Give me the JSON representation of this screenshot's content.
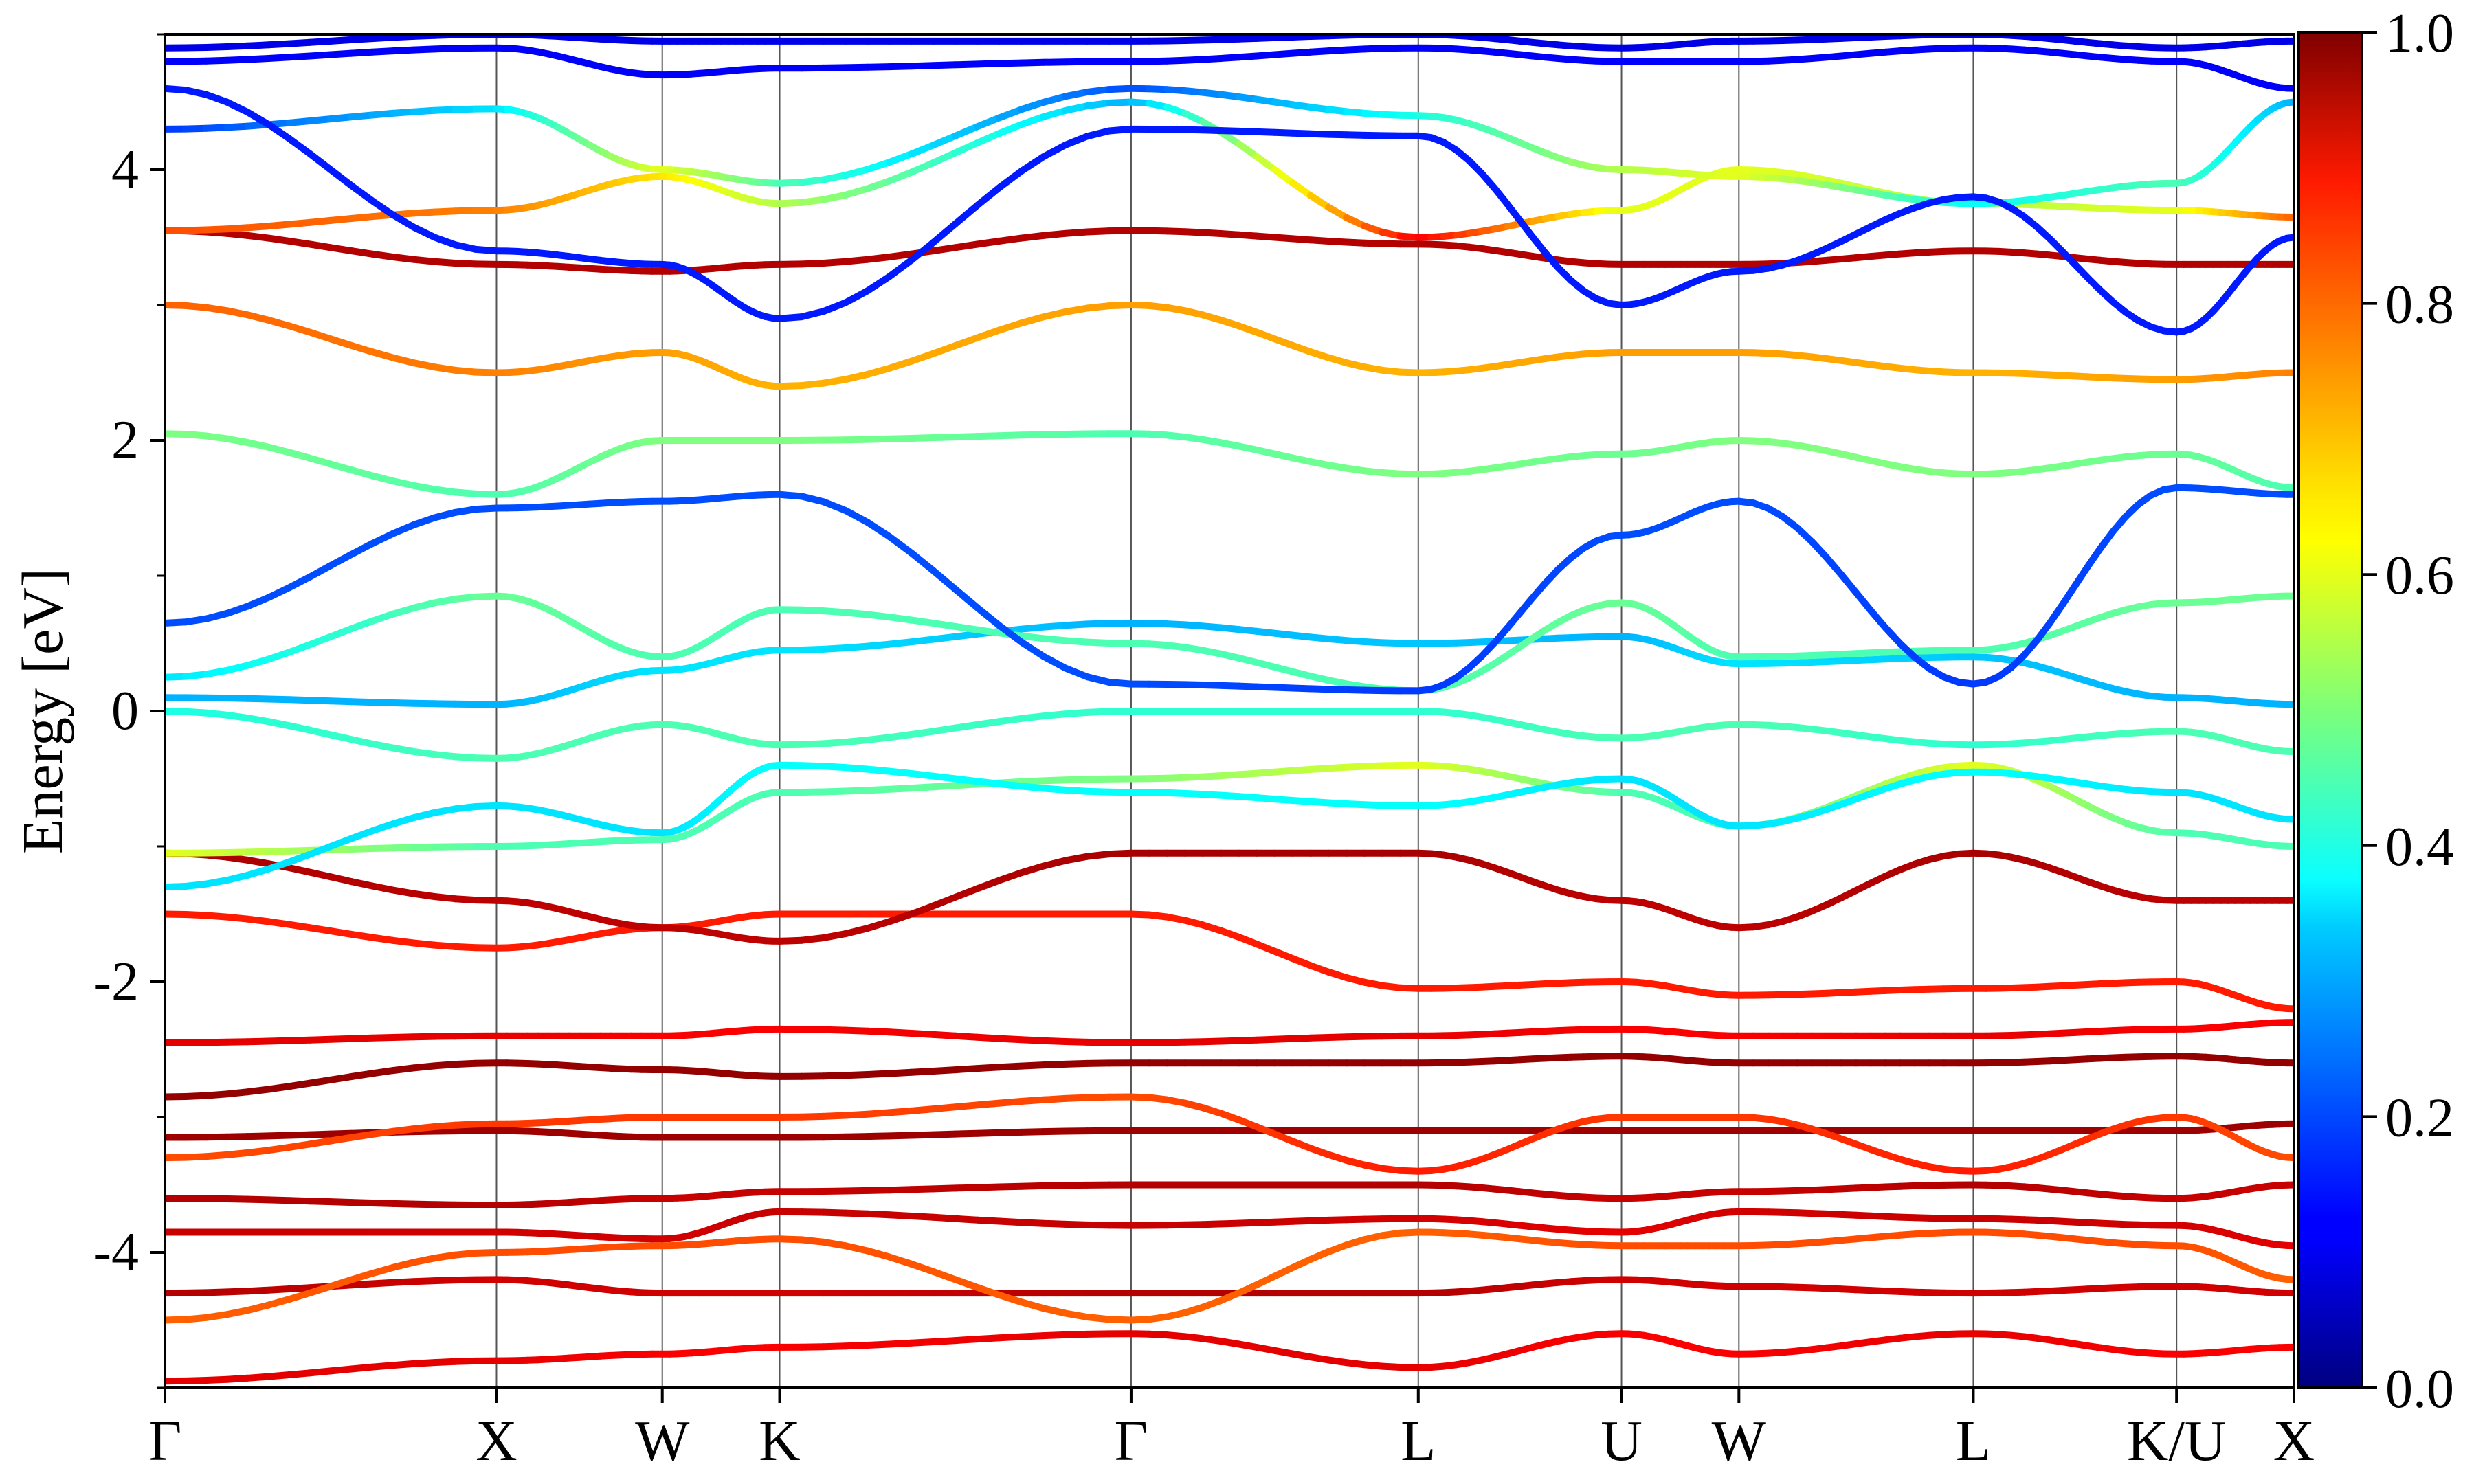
{
  "chart_data": {
    "type": "line",
    "title": "",
    "xlabel": "",
    "ylabel": "Energy [eV]",
    "ylim": [
      -5,
      5
    ],
    "y_ticks": [
      -4,
      -2,
      0,
      2,
      4
    ],
    "y_tick_labels": [
      "-4",
      "-2",
      "0",
      "2",
      "4"
    ],
    "high_symmetry_points": [
      {
        "label": "Γ",
        "pos": 0.0
      },
      {
        "label": "X",
        "pos": 1.0
      },
      {
        "label": "W",
        "pos": 1.5
      },
      {
        "label": "K",
        "pos": 1.854
      },
      {
        "label": "Γ",
        "pos": 2.914
      },
      {
        "label": "L",
        "pos": 3.78
      },
      {
        "label": "U",
        "pos": 4.393
      },
      {
        "label": "W",
        "pos": 4.747
      },
      {
        "label": "L",
        "pos": 5.454
      },
      {
        "label": "K/U",
        "pos": 6.067
      },
      {
        "label": "X",
        "pos": 6.421
      }
    ],
    "colorbar": {
      "colormap": "jet",
      "range": [
        0.0,
        1.0
      ],
      "ticks": [
        0.0,
        0.2,
        0.4,
        0.6,
        0.8,
        1.0
      ],
      "tick_labels": [
        "0.0",
        "0.2",
        "0.4",
        "0.6",
        "0.8",
        "1.0"
      ]
    },
    "series": [
      {
        "values": [
          -4.95,
          -4.8,
          -4.75,
          -4.7,
          -4.6,
          -4.85,
          -4.6,
          -4.75,
          -4.6,
          -4.75,
          -4.7
        ],
        "weights": [
          0.9,
          0.9,
          0.88,
          0.88,
          0.9,
          0.9,
          0.88,
          0.88,
          0.9,
          0.88,
          0.88
        ]
      },
      {
        "values": [
          -4.3,
          -4.2,
          -4.3,
          -4.3,
          -4.3,
          -4.3,
          -4.2,
          -4.25,
          -4.3,
          -4.25,
          -4.3
        ],
        "weights": [
          0.95,
          0.92,
          0.92,
          0.92,
          0.95,
          0.95,
          0.92,
          0.92,
          0.92,
          0.92,
          0.92
        ]
      },
      {
        "values": [
          -4.5,
          -4.0,
          -3.95,
          -3.9,
          -4.5,
          -3.85,
          -3.95,
          -3.95,
          -3.85,
          -3.95,
          -4.2
        ],
        "weights": [
          0.78,
          0.8,
          0.8,
          0.8,
          0.78,
          0.78,
          0.8,
          0.8,
          0.8,
          0.8,
          0.78
        ]
      },
      {
        "values": [
          -3.85,
          -3.85,
          -3.9,
          -3.7,
          -3.8,
          -3.75,
          -3.85,
          -3.7,
          -3.75,
          -3.8,
          -3.95
        ],
        "weights": [
          0.93,
          0.92,
          0.92,
          0.93,
          0.93,
          0.92,
          0.9,
          0.92,
          0.93,
          0.92,
          0.9
        ]
      },
      {
        "values": [
          -3.6,
          -3.65,
          -3.6,
          -3.55,
          -3.5,
          -3.5,
          -3.6,
          -3.55,
          -3.5,
          -3.6,
          -3.5
        ],
        "weights": [
          0.95,
          0.95,
          0.93,
          0.93,
          0.95,
          0.95,
          0.93,
          0.93,
          0.95,
          0.93,
          0.93
        ]
      },
      {
        "values": [
          -3.15,
          -3.1,
          -3.15,
          -3.15,
          -3.1,
          -3.1,
          -3.1,
          -3.1,
          -3.1,
          -3.1,
          -3.05
        ],
        "weights": [
          0.97,
          0.97,
          0.97,
          0.97,
          0.97,
          0.97,
          0.97,
          0.97,
          0.97,
          0.97,
          0.97
        ]
      },
      {
        "values": [
          -3.3,
          -3.05,
          -3.0,
          -3.0,
          -2.85,
          -3.4,
          -3.0,
          -3.0,
          -3.4,
          -3.0,
          -3.3
        ],
        "weights": [
          0.8,
          0.82,
          0.82,
          0.82,
          0.8,
          0.85,
          0.82,
          0.82,
          0.85,
          0.82,
          0.8
        ]
      },
      {
        "values": [
          -2.85,
          -2.6,
          -2.65,
          -2.7,
          -2.6,
          -2.6,
          -2.55,
          -2.6,
          -2.6,
          -2.55,
          -2.6
        ],
        "weights": [
          0.98,
          0.98,
          0.98,
          0.98,
          0.98,
          0.98,
          0.98,
          0.98,
          0.98,
          0.98,
          0.98
        ]
      },
      {
        "values": [
          -2.45,
          -2.4,
          -2.4,
          -2.35,
          -2.45,
          -2.4,
          -2.35,
          -2.4,
          -2.4,
          -2.35,
          -2.3
        ],
        "weights": [
          0.9,
          0.9,
          0.88,
          0.88,
          0.9,
          0.9,
          0.88,
          0.88,
          0.9,
          0.88,
          0.88
        ]
      },
      {
        "values": [
          -1.5,
          -1.75,
          -1.6,
          -1.5,
          -1.5,
          -2.05,
          -2.0,
          -2.1,
          -2.05,
          -2.0,
          -2.2
        ],
        "weights": [
          0.85,
          0.85,
          0.85,
          0.85,
          0.85,
          0.85,
          0.85,
          0.85,
          0.85,
          0.85,
          0.85
        ]
      },
      {
        "values": [
          -1.05,
          -1.4,
          -1.6,
          -1.7,
          -1.05,
          -1.05,
          -1.4,
          -1.6,
          -1.05,
          -1.4,
          -1.4
        ],
        "weights": [
          0.96,
          0.94,
          0.94,
          0.94,
          0.96,
          0.96,
          0.94,
          0.94,
          0.96,
          0.94,
          0.94
        ]
      },
      {
        "values": [
          -1.05,
          -1.0,
          -0.95,
          -0.6,
          -0.5,
          -0.4,
          -0.6,
          -0.85,
          -0.4,
          -0.9,
          -1.0
        ],
        "weights": [
          0.6,
          0.45,
          0.45,
          0.45,
          0.5,
          0.6,
          0.45,
          0.45,
          0.6,
          0.45,
          0.45
        ]
      },
      {
        "values": [
          -1.3,
          -0.7,
          -0.9,
          -0.4,
          -0.6,
          -0.7,
          -0.5,
          -0.85,
          -0.45,
          -0.6,
          -0.8
        ],
        "weights": [
          0.35,
          0.35,
          0.35,
          0.38,
          0.38,
          0.38,
          0.35,
          0.35,
          0.38,
          0.35,
          0.35
        ]
      },
      {
        "values": [
          0.0,
          -0.35,
          -0.1,
          -0.25,
          0.0,
          0.0,
          -0.2,
          -0.1,
          -0.25,
          -0.15,
          -0.3
        ],
        "weights": [
          0.4,
          0.45,
          0.45,
          0.45,
          0.42,
          0.42,
          0.45,
          0.45,
          0.42,
          0.45,
          0.45
        ]
      },
      {
        "values": [
          0.1,
          0.05,
          0.3,
          0.45,
          0.65,
          0.5,
          0.55,
          0.35,
          0.4,
          0.1,
          0.05
        ],
        "weights": [
          0.3,
          0.3,
          0.35,
          0.35,
          0.3,
          0.32,
          0.3,
          0.35,
          0.32,
          0.3,
          0.3
        ]
      },
      {
        "values": [
          0.25,
          0.85,
          0.4,
          0.75,
          0.5,
          0.15,
          0.8,
          0.4,
          0.45,
          0.8,
          0.85
        ],
        "weights": [
          0.35,
          0.48,
          0.45,
          0.45,
          0.45,
          0.45,
          0.48,
          0.45,
          0.45,
          0.48,
          0.48
        ]
      },
      {
        "values": [
          0.65,
          1.5,
          1.55,
          1.6,
          0.2,
          0.15,
          1.3,
          1.55,
          0.2,
          1.65,
          1.6
        ],
        "weights": [
          0.2,
          0.2,
          0.2,
          0.2,
          0.2,
          0.18,
          0.2,
          0.2,
          0.18,
          0.2,
          0.2
        ]
      },
      {
        "values": [
          2.05,
          1.6,
          2.0,
          2.0,
          2.05,
          1.75,
          1.9,
          2.0,
          1.75,
          1.9,
          1.65
        ],
        "weights": [
          0.5,
          0.45,
          0.5,
          0.5,
          0.45,
          0.5,
          0.48,
          0.5,
          0.5,
          0.48,
          0.45
        ]
      },
      {
        "values": [
          3.0,
          2.5,
          2.65,
          2.4,
          3.0,
          2.5,
          2.65,
          2.65,
          2.5,
          2.45,
          2.5
        ],
        "weights": [
          0.78,
          0.75,
          0.72,
          0.7,
          0.72,
          0.7,
          0.72,
          0.72,
          0.7,
          0.72,
          0.75
        ]
      },
      {
        "values": [
          3.55,
          3.3,
          3.25,
          3.3,
          3.55,
          3.45,
          3.3,
          3.3,
          3.4,
          3.3,
          3.3
        ],
        "weights": [
          0.95,
          0.95,
          0.95,
          0.95,
          0.95,
          0.95,
          0.95,
          0.95,
          0.95,
          0.95,
          0.95
        ]
      },
      {
        "values": [
          3.55,
          3.7,
          3.95,
          3.75,
          4.5,
          3.5,
          3.7,
          4.0,
          3.75,
          3.7,
          3.65
        ],
        "weights": [
          0.8,
          0.75,
          0.65,
          0.55,
          0.3,
          0.88,
          0.6,
          0.6,
          0.55,
          0.6,
          0.78
        ]
      },
      {
        "values": [
          4.3,
          4.45,
          4.0,
          3.9,
          4.6,
          4.4,
          4.0,
          3.95,
          3.75,
          3.9,
          4.5
        ],
        "weights": [
          0.18,
          0.35,
          0.6,
          0.45,
          0.2,
          0.4,
          0.55,
          0.6,
          0.38,
          0.45,
          0.3
        ]
      },
      {
        "values": [
          4.6,
          3.4,
          3.3,
          2.9,
          4.3,
          4.25,
          3.0,
          3.25,
          3.8,
          2.8,
          3.5
        ],
        "weights": [
          0.15,
          0.15,
          0.15,
          0.15,
          0.15,
          0.15,
          0.15,
          0.15,
          0.15,
          0.15,
          0.15
        ]
      },
      {
        "values": [
          4.8,
          4.9,
          4.7,
          4.75,
          4.8,
          4.9,
          4.8,
          4.8,
          4.9,
          4.8,
          4.6
        ],
        "weights": [
          0.12,
          0.12,
          0.12,
          0.12,
          0.12,
          0.12,
          0.12,
          0.12,
          0.12,
          0.12,
          0.12
        ]
      },
      {
        "values": [
          4.9,
          5.0,
          4.95,
          4.95,
          4.95,
          5.0,
          4.9,
          4.95,
          5.0,
          4.9,
          4.95
        ],
        "weights": [
          0.1,
          0.1,
          0.1,
          0.1,
          0.1,
          0.1,
          0.1,
          0.1,
          0.1,
          0.1,
          0.1
        ]
      }
    ]
  }
}
